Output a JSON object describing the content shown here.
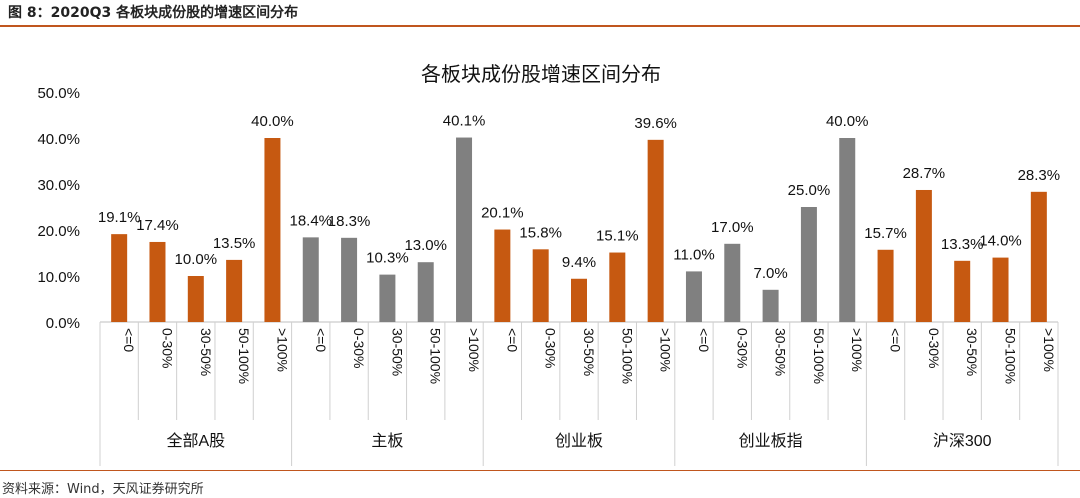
{
  "figure": {
    "caption": "图 8：2020Q3 各板块成份股的增速区间分布",
    "source": "资料来源：Wind，天风证券研究所"
  },
  "chart_data": {
    "type": "bar",
    "title": "各板块成份股增速区间分布",
    "ylim": [
      0,
      50
    ],
    "yticks": [
      "0.0%",
      "10.0%",
      "20.0%",
      "30.0%",
      "40.0%",
      "50.0%"
    ],
    "intervals": [
      "<=0",
      "0-30%",
      "30-50%",
      "50-100%",
      ">100%"
    ],
    "groups": [
      {
        "name": "全部A股",
        "color": "#c65911",
        "values": [
          19.1,
          17.4,
          10.0,
          13.5,
          40.0
        ],
        "labels": [
          "19.1%",
          "17.4%",
          "10.0%",
          "13.5%",
          "40.0%"
        ]
      },
      {
        "name": "主板",
        "color": "#808080",
        "values": [
          18.4,
          18.3,
          10.3,
          13.0,
          40.1
        ],
        "labels": [
          "18.4%",
          "18.3%",
          "10.3%",
          "13.0%",
          "40.1%"
        ]
      },
      {
        "name": "创业板",
        "color": "#c65911",
        "values": [
          20.1,
          15.8,
          9.4,
          15.1,
          39.6
        ],
        "labels": [
          "20.1%",
          "15.8%",
          "9.4%",
          "15.1%",
          "39.6%"
        ]
      },
      {
        "name": "创业板指",
        "color": "#808080",
        "values": [
          11.0,
          17.0,
          7.0,
          25.0,
          40.0
        ],
        "labels": [
          "11.0%",
          "17.0%",
          "7.0%",
          "25.0%",
          "40.0%"
        ]
      },
      {
        "name": "沪深300",
        "color": "#c65911",
        "values": [
          15.7,
          28.7,
          13.3,
          14.0,
          28.3
        ],
        "labels": [
          "15.7%",
          "28.7%",
          "13.3%",
          "14.0%",
          "28.3%"
        ]
      }
    ]
  }
}
